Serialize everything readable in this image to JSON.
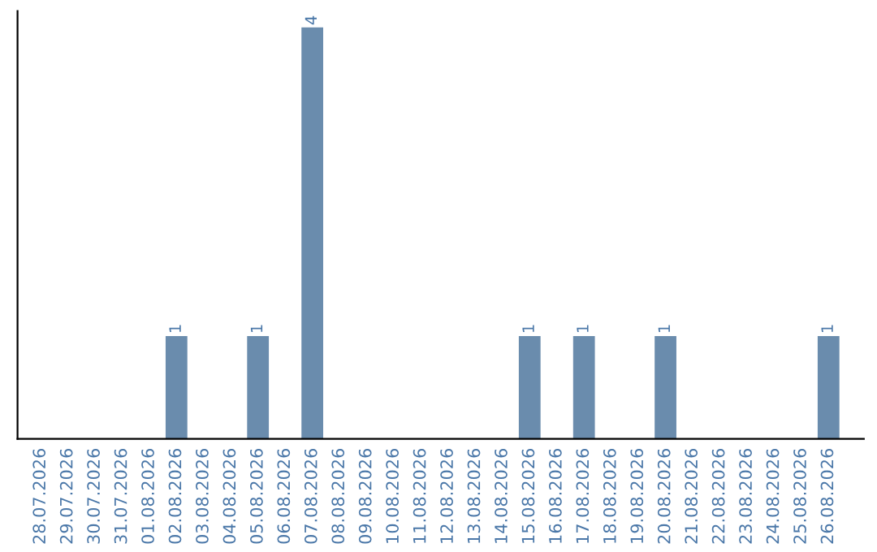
{
  "chart_data": {
    "type": "bar",
    "categories": [
      "28.07.2026",
      "29.07.2026",
      "30.07.2026",
      "31.07.2026",
      "01.08.2026",
      "02.08.2026",
      "03.08.2026",
      "04.08.2026",
      "05.08.2026",
      "06.08.2026",
      "07.08.2026",
      "08.08.2026",
      "09.08.2026",
      "10.08.2026",
      "11.08.2026",
      "12.08.2026",
      "13.08.2026",
      "14.08.2026",
      "15.08.2026",
      "16.08.2026",
      "17.08.2026",
      "18.08.2026",
      "19.08.2026",
      "20.08.2026",
      "21.08.2026",
      "22.08.2026",
      "23.08.2026",
      "24.08.2026",
      "25.08.2026",
      "26.08.2026"
    ],
    "values": [
      0,
      0,
      0,
      0,
      0,
      1,
      0,
      0,
      1,
      0,
      4,
      0,
      0,
      0,
      0,
      0,
      0,
      0,
      1,
      0,
      1,
      0,
      0,
      1,
      0,
      0,
      0,
      0,
      0,
      1
    ],
    "value_labels": [
      null,
      null,
      null,
      null,
      null,
      "1",
      null,
      null,
      "1",
      null,
      "4",
      null,
      null,
      null,
      null,
      null,
      null,
      null,
      "1",
      null,
      "1",
      null,
      null,
      "1",
      null,
      null,
      null,
      null,
      null,
      "1"
    ],
    "color": "#6a8cad",
    "tick_labels": "x",
    "grid": false,
    "legend": false
  }
}
